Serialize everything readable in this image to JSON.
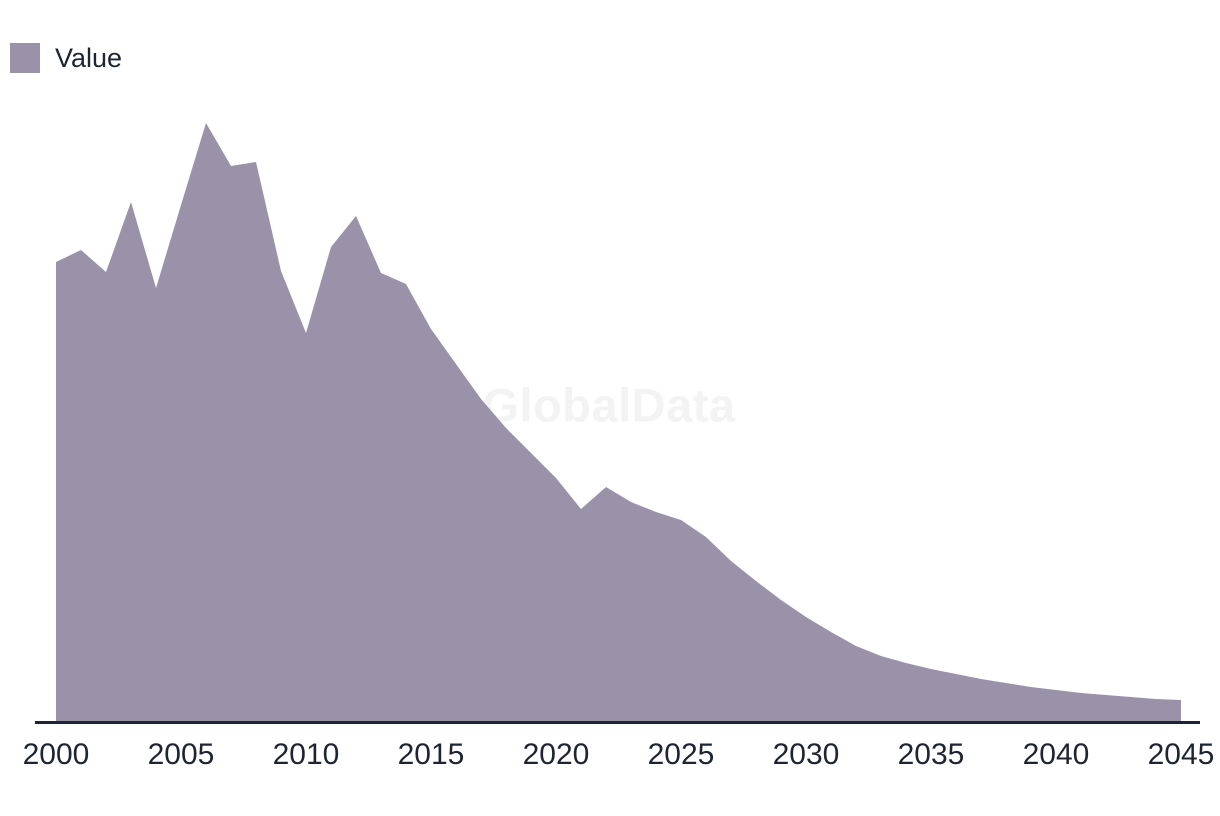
{
  "legend": {
    "items": [
      {
        "label": "Value",
        "color": "#9992a9"
      }
    ]
  },
  "watermark": "GlobalData",
  "colors": {
    "background": "#ffffff",
    "area": "#9992a9",
    "axis_line": "#1e2433",
    "text": "#1e2433",
    "watermark": "#f3f3f3"
  },
  "chart_data": {
    "type": "area",
    "title": "",
    "xlabel": "",
    "ylabel": "",
    "legend_entries": [
      "Value"
    ],
    "legend_position": "top-left",
    "grid": false,
    "y_axis_visible": false,
    "y_units": "relative (no y-axis shown)",
    "xlim": [
      2000,
      2045
    ],
    "ylim": [
      0,
      660
    ],
    "x_ticks": [
      "2000",
      "2005",
      "2010",
      "2015",
      "2020",
      "2025",
      "2030",
      "2035",
      "2040",
      "2045"
    ],
    "series": [
      {
        "name": "Value",
        "x": [
          2000,
          2001,
          2002,
          2003,
          2004,
          2005,
          2006,
          2007,
          2008,
          2009,
          2010,
          2011,
          2012,
          2013,
          2014,
          2015,
          2016,
          2017,
          2018,
          2019,
          2020,
          2021,
          2022,
          2023,
          2024,
          2025,
          2026,
          2027,
          2028,
          2029,
          2030,
          2031,
          2032,
          2033,
          2034,
          2035,
          2036,
          2037,
          2038,
          2039,
          2040,
          2041,
          2042,
          2043,
          2044,
          2045
        ],
        "values": [
          460,
          472,
          450,
          520,
          434,
          517,
          599,
          556,
          560,
          451,
          389,
          475,
          506,
          449,
          438,
          393,
          358,
          323,
          294,
          269,
          244,
          213,
          235,
          220,
          210,
          202,
          185,
          161,
          141,
          122,
          105,
          90,
          76,
          66,
          59,
          53,
          48,
          43,
          39,
          35,
          32,
          29,
          27,
          25,
          23,
          22
        ]
      }
    ]
  }
}
